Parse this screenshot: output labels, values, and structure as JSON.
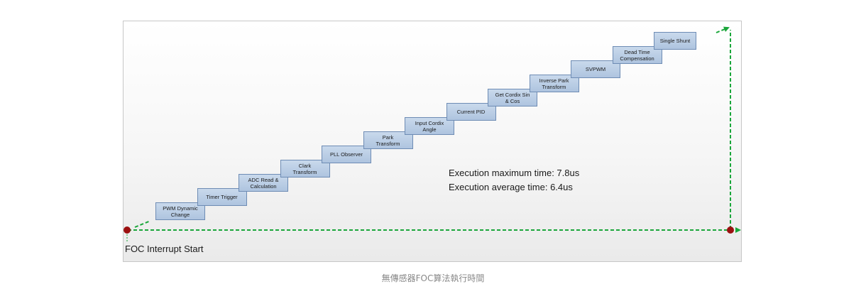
{
  "diagram": {
    "steps": [
      {
        "id": "pwm-dynamic-change",
        "label": "PWM Dynamic\nChange"
      },
      {
        "id": "timer-trigger",
        "label": "Timer Trigger"
      },
      {
        "id": "adc-read-calculation",
        "label": "ADC Read &\nCalculation"
      },
      {
        "id": "clark-transform",
        "label": "Clark\nTransform"
      },
      {
        "id": "pll-observer",
        "label": "PLL Observer"
      },
      {
        "id": "park-transform",
        "label": "Park\nTransform"
      },
      {
        "id": "input-cordix-angle",
        "label": "Input Cordix\nAngle"
      },
      {
        "id": "current-pid",
        "label": "Current PID"
      },
      {
        "id": "get-cordix-sin-cos",
        "label": "Get Cordix Sin\n& Cos"
      },
      {
        "id": "inverse-park-transform",
        "label": "Inverse Park\nTransform"
      },
      {
        "id": "svpwm",
        "label": "SVPWM"
      },
      {
        "id": "dead-time-compensation",
        "label": "Dead Time\nCompensation"
      },
      {
        "id": "single-shunt",
        "label": "Single Shunt"
      }
    ],
    "stats": {
      "max_time": "Execution maximum time: 7.8us",
      "avg_time": "Execution average time: 6.4us"
    },
    "start_label": "FOC Interrupt Start",
    "colors": {
      "arrow": "#1aa63a",
      "node": "#9b1010",
      "box_border": "#6e8cb4"
    }
  },
  "caption": "無傳感器FOC算法執行時間"
}
